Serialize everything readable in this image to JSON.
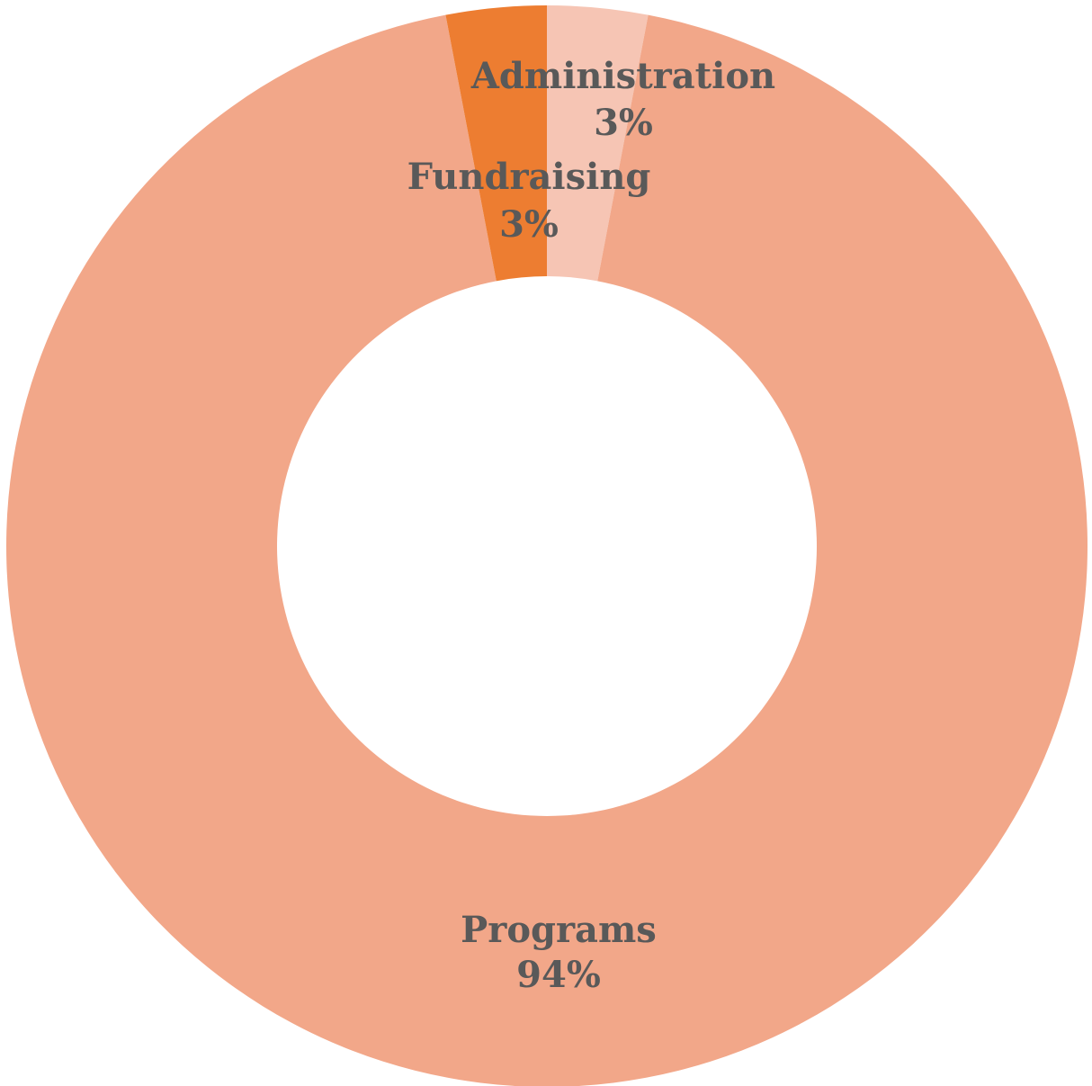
{
  "chart_data": {
    "type": "pie",
    "variant": "donut",
    "categories": [
      "Administration",
      "Programs",
      "Fundraising"
    ],
    "values": [
      3,
      94,
      3
    ],
    "value_labels": [
      "3%",
      "94%",
      "3%"
    ],
    "colors": [
      "#f6c5b4",
      "#f2a789",
      "#ed7d31"
    ],
    "start_angle_deg": 0,
    "direction": "clockwise",
    "label_color": "#595959",
    "title": "",
    "legend": "none"
  }
}
